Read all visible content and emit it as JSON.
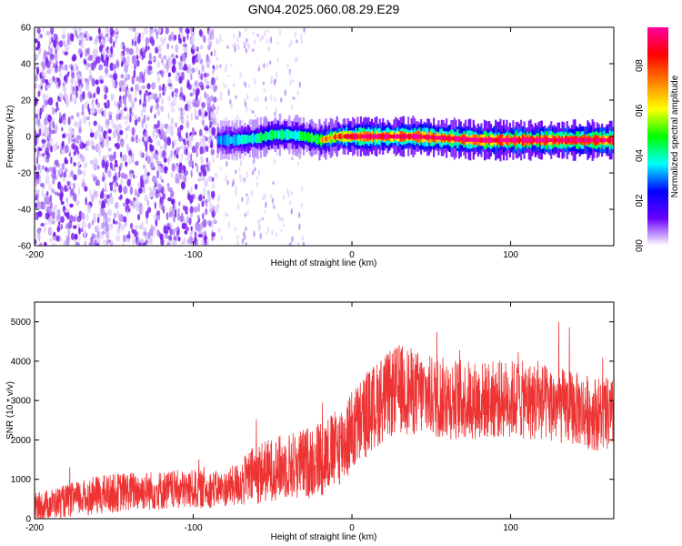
{
  "figure_title": "GN04.2025.060.08.29.E29",
  "chart_data": [
    {
      "type": "heatmap",
      "panel": "top",
      "title": "",
      "xlabel": "Height of straight line (km)",
      "ylabel": "Frequency (Hz)",
      "xlim": [
        -200,
        165
      ],
      "ylim": [
        -60,
        60
      ],
      "xticks": [
        -200,
        -100,
        0,
        100
      ],
      "yticks": [
        -60,
        -40,
        -20,
        0,
        20,
        40,
        60
      ],
      "noise_region_x": [
        -200,
        -85
      ],
      "scattered_noise_x": [
        -85,
        -30
      ],
      "signal_band": {
        "x": [
          -85,
          -75,
          -60,
          -50,
          -40,
          -30,
          -20,
          -10,
          0,
          10,
          20,
          30,
          40,
          60,
          80,
          100,
          120,
          140,
          165
        ],
        "center_freq_hz": [
          -2,
          -2,
          -1,
          1,
          1,
          0,
          -2,
          0,
          0,
          0,
          0,
          0,
          0,
          -1,
          -2,
          -2,
          -2,
          -2,
          -2
        ],
        "normalized_amplitude": [
          0.3,
          0.35,
          0.45,
          0.5,
          0.45,
          0.5,
          0.6,
          0.7,
          0.8,
          0.95,
          0.9,
          0.9,
          0.85,
          0.9,
          0.9,
          0.95,
          0.95,
          0.95,
          0.95
        ]
      },
      "colorbar": {
        "label": "Normalized spectral amplitude",
        "range": [
          0.0,
          0.97
        ],
        "ticks": [
          "0.0",
          "0.2",
          "0.4",
          "0.6",
          "0.8"
        ],
        "colormap": [
          "#ffffff",
          "#6a00ff",
          "#0000ff",
          "#00ffff",
          "#00ff00",
          "#ffff00",
          "#ff8000",
          "#ff0000",
          "#ff00a0"
        ]
      }
    },
    {
      "type": "line",
      "panel": "bottom",
      "title": "",
      "xlabel": "Height of straight line (km)",
      "ylabel": "SNR (10 * v/v)",
      "xlim": [
        -200,
        165
      ],
      "ylim": [
        0,
        5500
      ],
      "xticks": [
        -200,
        -100,
        0,
        100
      ],
      "yticks": [
        0,
        1000,
        2000,
        3000,
        4000,
        5000
      ],
      "series": [
        {
          "color": "#ee3333",
          "x": [
            -200,
            -180,
            -160,
            -140,
            -120,
            -100,
            -80,
            -70,
            -60,
            -50,
            -40,
            -30,
            -20,
            -10,
            0,
            10,
            20,
            30,
            40,
            50,
            60,
            80,
            100,
            120,
            140,
            150,
            165
          ],
          "mean": [
            300,
            450,
            600,
            700,
            720,
            740,
            760,
            900,
            1150,
            1250,
            1350,
            1400,
            1550,
            1750,
            2200,
            2700,
            3050,
            3300,
            3200,
            3100,
            3050,
            3000,
            3050,
            2950,
            2800,
            2700,
            2600
          ],
          "spread": [
            350,
            420,
            500,
            500,
            500,
            500,
            450,
            600,
            800,
            800,
            850,
            900,
            1000,
            1000,
            1100,
            1100,
            1100,
            1150,
            1100,
            1050,
            1050,
            1000,
            1000,
            1000,
            950,
            950,
            950
          ]
        }
      ]
    }
  ]
}
